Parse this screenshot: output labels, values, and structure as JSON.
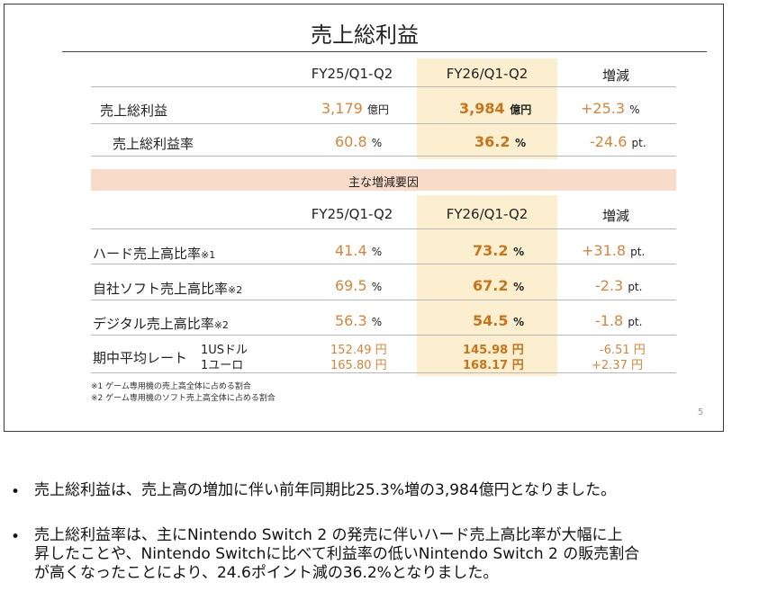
{
  "slide": {
    "title": "売上総利益",
    "page_number": "5",
    "col_headers": [
      "FY25/Q1-Q2",
      "FY26/Q1-Q2",
      "増減"
    ],
    "top_rows": [
      {
        "label": "売上総利益",
        "prev": "3,179",
        "prev_unit": "億円",
        "cur": "3,984",
        "cur_unit": "億円",
        "chg": "+25.3",
        "chg_unit": "%"
      },
      {
        "label": "売上総利益率",
        "prev": "60.8",
        "prev_unit": "%",
        "cur": "36.2",
        "cur_unit": "%",
        "chg": "-24.6",
        "chg_unit": "pt."
      }
    ],
    "factors_title": "主な増減要因",
    "factor_rows": [
      {
        "label": "ハード売上高比率",
        "note": "※1",
        "prev": "41.4",
        "prev_unit": "%",
        "cur": "73.2",
        "cur_unit": "%",
        "chg": "+31.8",
        "chg_unit": "pt."
      },
      {
        "label": "自社ソフト売上高比率",
        "note": "※2",
        "prev": "69.5",
        "prev_unit": "%",
        "cur": "67.2",
        "cur_unit": "%",
        "chg": "-2.3",
        "chg_unit": "pt."
      },
      {
        "label": "デジタル売上高比率",
        "note": "※2",
        "prev": "56.3",
        "prev_unit": "%",
        "cur": "54.5",
        "cur_unit": "%",
        "chg": "-1.8",
        "chg_unit": "pt."
      }
    ],
    "fx": {
      "label": "期中平均レート",
      "rows": [
        {
          "currency": "1USドル",
          "prev": "152.49 円",
          "cur": "145.98 円",
          "chg": "-6.51 円"
        },
        {
          "currency": "1ユーロ",
          "prev": "165.80 円",
          "cur": "168.17 円",
          "chg": "+2.37 円"
        }
      ]
    },
    "footnotes": [
      "※1 ゲーム専用機の売上高全体に占める割合",
      "※2 ゲーム専用機のソフト売上高全体に占める割合"
    ]
  },
  "bullets": [
    {
      "lines": [
        "売上総利益は、売上高の増加に伴い前年同期比25.3%増の3,984億円となりました。"
      ]
    },
    {
      "lines": [
        "売上総利益率は、主にNintendo Switch 2 の発売に伴いハード売上高比率が大幅に上",
        "昇したことや、Nintendo Switchに比べて利益率の低いNintendo Switch 2 の販売割合",
        "が高くなったことにより、24.6ポイント減の36.2%となりました。"
      ]
    }
  ],
  "colors": {
    "prev": "#d9843a",
    "current": "#c8741d",
    "highlight": "#fbefcf",
    "band": "#f8dcc9"
  }
}
